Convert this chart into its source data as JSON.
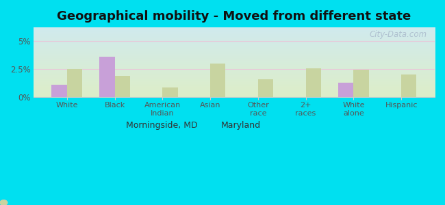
{
  "title": "Geographical mobility - Moved from different state",
  "categories": [
    "White",
    "Black",
    "American\nIndian",
    "Asian",
    "Other\nrace",
    "2+\nraces",
    "White\nalone",
    "Hispanic"
  ],
  "morningside_values": [
    1.1,
    3.6,
    0.0,
    0.0,
    0.0,
    0.0,
    1.3,
    0.0
  ],
  "maryland_values": [
    2.5,
    1.9,
    0.85,
    3.0,
    1.6,
    2.55,
    2.45,
    2.0
  ],
  "morningside_color": "#c8a0d8",
  "maryland_color": "#c8d4a0",
  "background_outer": "#00e0f0",
  "background_inner_top": "#d0eaee",
  "background_inner_bottom": "#ddeec8",
  "title_fontsize": 13,
  "ylim": [
    0,
    6.2
  ],
  "ytick_vals": [
    0,
    2.5,
    5.0
  ],
  "ytick_labels": [
    "0%",
    "2.5%",
    "5%"
  ],
  "watermark": "City-Data.com",
  "legend_labels": [
    "Morningside, MD",
    "Maryland"
  ],
  "grid_color": "#e8c8d8",
  "spine_color": "#cccccc"
}
